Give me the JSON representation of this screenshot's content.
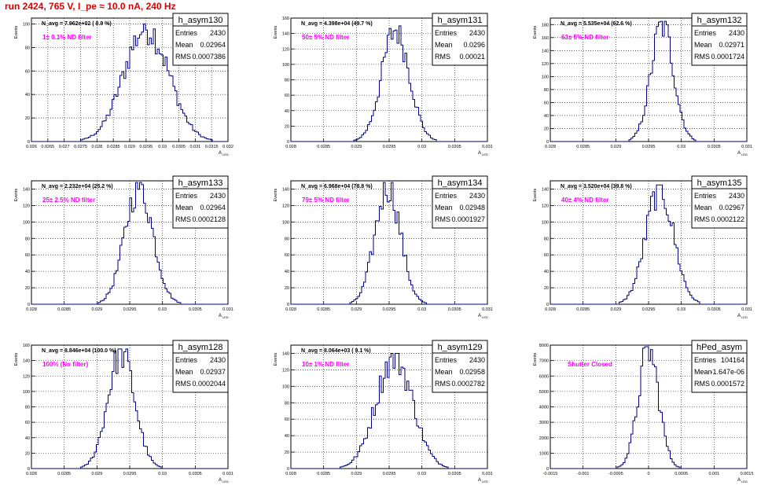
{
  "title": "run 2424,   765 V, I_pe ≈ 10.0 nA, 240 Hz",
  "colors": {
    "title": "#e00000",
    "label": "#ff00ff",
    "hist": "#000080",
    "grid": "#000000"
  },
  "stats_labels": {
    "entries": "Entries",
    "mean": "Mean",
    "rms": "RMS"
  },
  "ylabel": "Events",
  "xlabel": "A",
  "xlabel_sub": "LED",
  "chart_data": [
    {
      "type": "histogram",
      "name": "h_asym130",
      "navg": "N_avg = 7.962e+02 ( 0.9 %)",
      "label": "1± 0.1% ND filter",
      "stats": {
        "entries": "2430",
        "mean": "0.02964",
        "rms": "0.0007386"
      },
      "xlim": [
        0.026,
        0.0325
      ],
      "ylim": [
        0,
        105
      ],
      "ymax": 100,
      "xticks": [
        "0.026",
        "0.0265",
        "0.027",
        "0.0275",
        "0.028",
        "0.0285",
        "0.029",
        "0.0295",
        "0.03",
        "0.0305",
        "0.031",
        "0.0315",
        "0.032"
      ],
      "yticks": [
        "0",
        "20",
        "40",
        "60",
        "80",
        "100"
      ],
      "peak_x": 0.0298,
      "sigma": 0.00074,
      "grid": true
    },
    {
      "type": "histogram",
      "name": "h_asym131",
      "navg": "N_avg = 4.398e+04 (49.7 %)",
      "label": "50± 5% ND filter",
      "stats": {
        "entries": "2430",
        "mean": "0.0296",
        "rms": "0.00021"
      },
      "xlim": [
        0.028,
        0.031
      ],
      "ylim": [
        0,
        160
      ],
      "ymax": 150,
      "xticks": [
        "0.028",
        "0.0285",
        "0.029",
        "0.0295",
        "0.03",
        "0.0305",
        "0.031"
      ],
      "yticks": [
        "0",
        "20",
        "40",
        "60",
        "80",
        "100",
        "120",
        "140",
        "160"
      ],
      "peak_x": 0.0296,
      "sigma": 0.00021,
      "grid": true
    },
    {
      "type": "histogram",
      "name": "h_asym132",
      "navg": "N_avg = 5.535e+04 (62.6 %)",
      "label": "63± 5% ND filter",
      "stats": {
        "entries": "2430",
        "mean": "0.02971",
        "rms": "0.0001724"
      },
      "xlim": [
        0.028,
        0.031
      ],
      "ylim": [
        0,
        190
      ],
      "ymax": 185,
      "xticks": [
        "0.028",
        "0.0285",
        "0.029",
        "0.0295",
        "0.03",
        "0.0305",
        "0.031"
      ],
      "yticks": [
        "0",
        "20",
        "40",
        "60",
        "80",
        "100",
        "120",
        "140",
        "160",
        "180"
      ],
      "peak_x": 0.02971,
      "sigma": 0.000172,
      "grid": true
    },
    {
      "type": "histogram",
      "name": "h_asym133",
      "navg": "N_avg = 2.232e+04 (25.2 %)",
      "label": "25± 2.5% ND filter",
      "stats": {
        "entries": "2430",
        "mean": "0.02964",
        "rms": "0.0002128"
      },
      "xlim": [
        0.028,
        0.031
      ],
      "ylim": [
        0,
        150
      ],
      "ymax": 148,
      "xticks": [
        "0.028",
        "0.0285",
        "0.029",
        "0.0295",
        "0.03",
        "0.0305",
        "0.031"
      ],
      "yticks": [
        "0",
        "20",
        "40",
        "60",
        "80",
        "100",
        "120",
        "140"
      ],
      "peak_x": 0.02964,
      "sigma": 0.000213,
      "grid": true
    },
    {
      "type": "histogram",
      "name": "h_asym134",
      "navg": "N_avg = 6.968e+04 (78.8 %)",
      "label": "79± 5% ND filter",
      "stats": {
        "entries": "2430",
        "mean": "0.02948",
        "rms": "0.0001927"
      },
      "xlim": [
        0.028,
        0.031
      ],
      "ylim": [
        0,
        150
      ],
      "ymax": 148,
      "xticks": [
        "0.028",
        "0.0285",
        "0.029",
        "0.0295",
        "0.03",
        "0.0305",
        "0.031"
      ],
      "yticks": [
        "0",
        "20",
        "40",
        "60",
        "80",
        "100",
        "120",
        "140"
      ],
      "peak_x": 0.02948,
      "sigma": 0.000193,
      "grid": true
    },
    {
      "type": "histogram",
      "name": "h_asym135",
      "navg": "N_avg = 3.520e+04 (39.8 %)",
      "label": "40± 4% ND filter",
      "stats": {
        "entries": "2430",
        "mean": "0.02967",
        "rms": "0.0002122"
      },
      "xlim": [
        0.028,
        0.031
      ],
      "ylim": [
        0,
        150
      ],
      "ymax": 145,
      "xticks": [
        "0.028",
        "0.0285",
        "0.029",
        "0.0295",
        "0.03",
        "0.0305",
        "0.031"
      ],
      "yticks": [
        "0",
        "20",
        "40",
        "60",
        "80",
        "100",
        "120",
        "140"
      ],
      "peak_x": 0.02967,
      "sigma": 0.000212,
      "grid": true
    },
    {
      "type": "histogram",
      "name": "h_asym128",
      "navg": "N_avg = 8.846e+04 (100.0 %)",
      "label": "100% (No filter)",
      "stats": {
        "entries": "2430",
        "mean": "0.02937",
        "rms": "0.0002044"
      },
      "xlim": [
        0.028,
        0.031
      ],
      "ylim": [
        0,
        160
      ],
      "ymax": 155,
      "xticks": [
        "0.028",
        "0.0285",
        "0.029",
        "0.0295",
        "0.03",
        "0.0305",
        "0.031"
      ],
      "yticks": [
        "0",
        "20",
        "40",
        "60",
        "80",
        "100",
        "120",
        "140",
        "160"
      ],
      "peak_x": 0.02937,
      "sigma": 0.000204,
      "grid": true
    },
    {
      "type": "histogram",
      "name": "h_asym129",
      "navg": "N_avg = 8.064e+03 ( 9.1 %)",
      "label": "10± 1% ND filter",
      "stats": {
        "entries": "2430",
        "mean": "0.02958",
        "rms": "0.0002782"
      },
      "xlim": [
        0.028,
        0.031
      ],
      "ylim": [
        0,
        150
      ],
      "ymax": 140,
      "xticks": [
        "0.028",
        "0.0285",
        "0.029",
        "0.0295",
        "0.03",
        "0.0305",
        "0.031"
      ],
      "yticks": [
        "0",
        "20",
        "40",
        "60",
        "80",
        "100",
        "120",
        "140"
      ],
      "peak_x": 0.02958,
      "sigma": 0.000278,
      "grid": true
    },
    {
      "type": "histogram",
      "name": "hPed_asym",
      "navg": "",
      "label": "Shutter Closed",
      "stats": {
        "entries": "104164",
        "mean": "-1.647e-06",
        "rms": "0.0001572"
      },
      "xlim": [
        -0.0015,
        0.0015
      ],
      "ylim": [
        0,
        8000
      ],
      "ymax": 7900,
      "xticks": [
        "-0.0015",
        "-0.001",
        "-0.0005",
        "0",
        "0.0005",
        "0.001",
        "0.0015"
      ],
      "yticks": [
        "0",
        "1000",
        "2000",
        "3000",
        "4000",
        "5000",
        "6000",
        "7000",
        "8000"
      ],
      "peak_x": 0.0,
      "sigma": 0.000157,
      "grid": true
    }
  ]
}
